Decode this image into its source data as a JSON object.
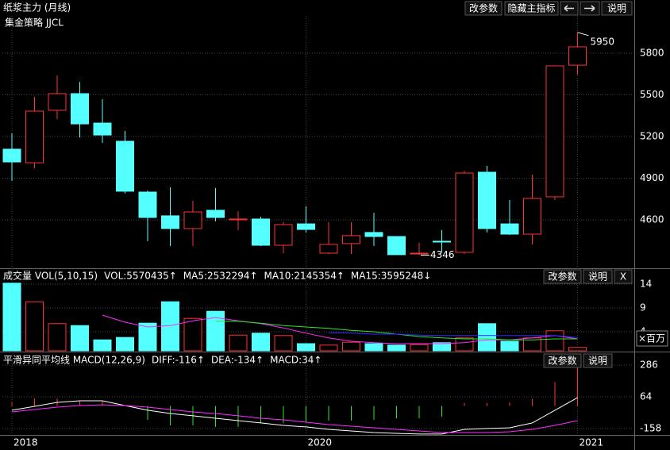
{
  "chart_data": [
    {
      "type": "candlestick",
      "title": "纸浆主力 (月线)",
      "subtitle": "集金策略 JJCL",
      "toolbar": [
        "改参数",
        "隐藏主指标",
        "说明"
      ],
      "categories": [
        "2018",
        null,
        null,
        null,
        null,
        null,
        null,
        null,
        null,
        null,
        null,
        null,
        null,
        "2020",
        null,
        null,
        null,
        null,
        null,
        null,
        null,
        null,
        null,
        null,
        null,
        "2021"
      ],
      "open": [
        5109,
        5011,
        5389,
        5509,
        5297,
        5166,
        4800,
        4629,
        4537,
        4669,
        4600,
        4606,
        4417,
        4571,
        4360,
        4429,
        4509,
        4480,
        4354,
        4446,
        4366,
        4943,
        4571,
        4497,
        4766,
        5714
      ],
      "high": [
        5223,
        5486,
        5640,
        5594,
        5469,
        5240,
        4811,
        4834,
        4737,
        4829,
        4663,
        4623,
        4583,
        4697,
        4583,
        4583,
        4651,
        4480,
        4434,
        4526,
        4954,
        4989,
        4743,
        4926,
        5709,
        5950
      ],
      "low": [
        4880,
        4971,
        5326,
        5194,
        5154,
        4790,
        4446,
        4411,
        4411,
        4589,
        4526,
        4411,
        4360,
        4509,
        4354,
        4354,
        4411,
        4349,
        4346,
        4366,
        4354,
        4509,
        4491,
        4423,
        4743,
        5646
      ],
      "close": [
        5017,
        5383,
        5509,
        5291,
        5211,
        4806,
        4617,
        4537,
        4657,
        4617,
        4606,
        4417,
        4566,
        4531,
        4423,
        4486,
        4480,
        4349,
        4360,
        4440,
        4937,
        4537,
        4497,
        4754,
        5709,
        5846
      ],
      "up_color": "#ff3232",
      "down_color": "#54ffff",
      "ylim": [
        4257,
        6069
      ],
      "yticks": [
        4600,
        4900,
        5200,
        5500,
        5800
      ],
      "grid": true
    },
    {
      "type": "volume",
      "title": "成交量 VOL(5,10,15)",
      "toolbar": [
        "改参数",
        "说明",
        "X"
      ],
      "y_unit": "×百万",
      "series": [
        {
          "name": "VOL:5570435↑",
          "color": "#ffffff",
          "values": [
            14.2,
            10.3,
            5.7,
            5.3,
            2.3,
            2.8,
            5.8,
            10.3,
            6.8,
            8.3,
            3.3,
            3.7,
            3.2,
            1.5,
            1.2,
            1.8,
            1.5,
            1.2,
            1.3,
            1.7,
            2.7,
            5.7,
            2.0,
            2.7,
            4.2,
            0.7
          ]
        },
        {
          "name": "MA5:2532294↑",
          "color": "#ff2cff",
          "values": [
            null,
            null,
            null,
            null,
            7.5,
            6,
            5,
            5.3,
            6.3,
            7,
            6.3,
            5.7,
            4.8,
            3.7,
            2.7,
            2,
            1.7,
            1.5,
            1.5,
            1.5,
            1.7,
            2.3,
            2.3,
            2.7,
            3.2,
            2.5
          ]
        },
        {
          "name": "MA10:2145354↑",
          "color": "#2ce62c",
          "values": [
            null,
            null,
            null,
            null,
            null,
            null,
            null,
            null,
            null,
            6.2,
            6.2,
            5.8,
            5.3,
            5,
            4.7,
            4.3,
            4,
            3.5,
            3,
            2.7,
            2.5,
            2.5,
            2.3,
            2.3,
            2.5,
            2.5
          ]
        },
        {
          "name": "MA15:3595248↓",
          "color": "#2c2cff",
          "values": [
            null,
            null,
            null,
            null,
            null,
            null,
            null,
            null,
            null,
            null,
            null,
            null,
            null,
            null,
            3.8,
            3.7,
            3.5,
            3.5,
            3.3,
            3.2,
            3.2,
            3.2,
            3.2,
            3.2,
            3.2,
            2.8
          ]
        }
      ],
      "ylim": [
        0,
        17
      ],
      "yticks": [
        4,
        9,
        14
      ],
      "grid": true
    },
    {
      "type": "macd",
      "title": "平滑异同平均线 MACD(12,26,9)",
      "toolbar": [
        "改参数",
        "说明"
      ],
      "series": [
        {
          "name": "DIFF:-116↑",
          "color": "#ffffff",
          "values": [
            -30,
            -3,
            25,
            36,
            36,
            3,
            -30,
            -53,
            -69,
            -86,
            -103,
            -119,
            -136,
            -147,
            -164,
            -175,
            -186,
            -192,
            -197,
            -197,
            -164,
            -158,
            -153,
            -119,
            -30,
            58
          ]
        },
        {
          "name": "DEA:-134↑",
          "color": "#ff2cff",
          "values": [
            -42,
            -25,
            -8,
            3,
            8,
            3,
            -8,
            -25,
            -42,
            -53,
            -69,
            -86,
            -97,
            -114,
            -131,
            -142,
            -153,
            -164,
            -175,
            -186,
            -186,
            -186,
            -181,
            -164,
            -136,
            -103
          ]
        },
        {
          "name": "MACD:34↑",
          "color": "#2ce62c",
          "up_color": "#ff3232",
          "values": [
            25,
            53,
            53,
            36,
            36,
            0,
            -97,
            -136,
            -136,
            -147,
            -147,
            -119,
            -119,
            -114,
            -103,
            -103,
            -97,
            -86,
            -86,
            -75,
            22,
            20,
            25,
            48,
            167,
            270
          ]
        }
      ],
      "ylim": [
        -203,
        370
      ],
      "yticks": [
        286,
        64,
        -158
      ],
      "grid": true
    }
  ]
}
